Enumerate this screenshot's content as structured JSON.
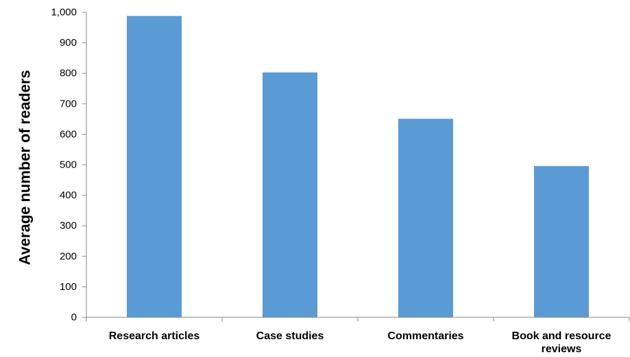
{
  "chart_data": {
    "type": "bar",
    "categories": [
      [
        "Research articles"
      ],
      [
        "Case studies"
      ],
      [
        "Commentaries"
      ],
      [
        "Book and resource",
        "reviews"
      ]
    ],
    "values": [
      988,
      803,
      651,
      496
    ],
    "title": "",
    "xlabel": "",
    "ylabel": "Average number of readers",
    "ylim": [
      0,
      1000
    ],
    "yticks": [
      0,
      100,
      200,
      300,
      400,
      500,
      600,
      700,
      800,
      900,
      1000
    ],
    "ytick_labels": [
      "0",
      "100",
      "200",
      "300",
      "400",
      "500",
      "600",
      "700",
      "800",
      "900",
      "1,000"
    ],
    "grid": false,
    "legend": "none",
    "bar_color": "#5b9bd5",
    "axis_color": "#868686"
  }
}
